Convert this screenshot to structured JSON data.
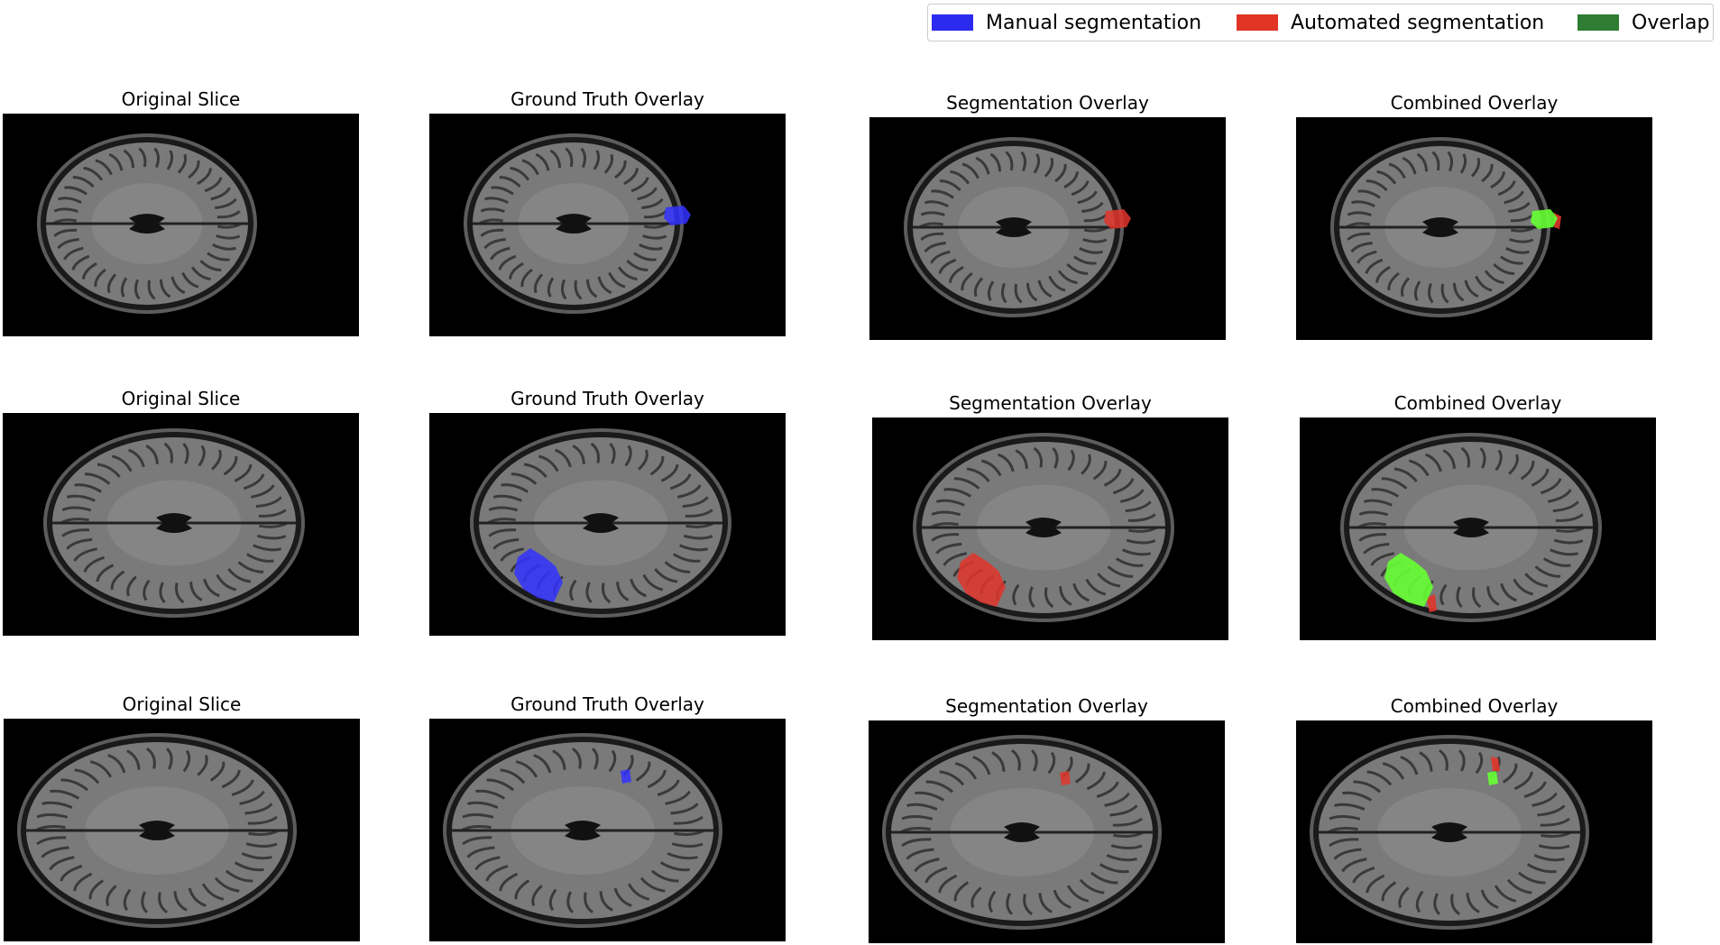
{
  "legend": {
    "items": [
      {
        "label": "Manual segmentation",
        "color": "#2b2bf0"
      },
      {
        "label": "Automated segmentation",
        "color": "#e03425"
      },
      {
        "label": "Overlap",
        "color": "#2e7d32"
      }
    ]
  },
  "overlay_colors": {
    "manual": "#3333ff",
    "automated": "#e0352b",
    "overlap": "#66ff33"
  },
  "rows": [
    {
      "panels": [
        {
          "title": "Original Slice",
          "overlay": "none"
        },
        {
          "title": "Ground Truth Overlay",
          "overlay": "manual"
        },
        {
          "title": "Segmentation Overlay",
          "overlay": "automated"
        },
        {
          "title": "Combined Overlay",
          "overlay": "combined"
        }
      ]
    },
    {
      "panels": [
        {
          "title": "Original Slice",
          "overlay": "none"
        },
        {
          "title": "Ground Truth Overlay",
          "overlay": "manual"
        },
        {
          "title": "Segmentation Overlay",
          "overlay": "automated"
        },
        {
          "title": "Combined Overlay",
          "overlay": "combined"
        }
      ]
    },
    {
      "panels": [
        {
          "title": "Original Slice",
          "overlay": "none"
        },
        {
          "title": "Ground Truth Overlay",
          "overlay": "manual"
        },
        {
          "title": "Segmentation Overlay",
          "overlay": "automated"
        },
        {
          "title": "Combined Overlay",
          "overlay": "combined"
        }
      ]
    }
  ]
}
